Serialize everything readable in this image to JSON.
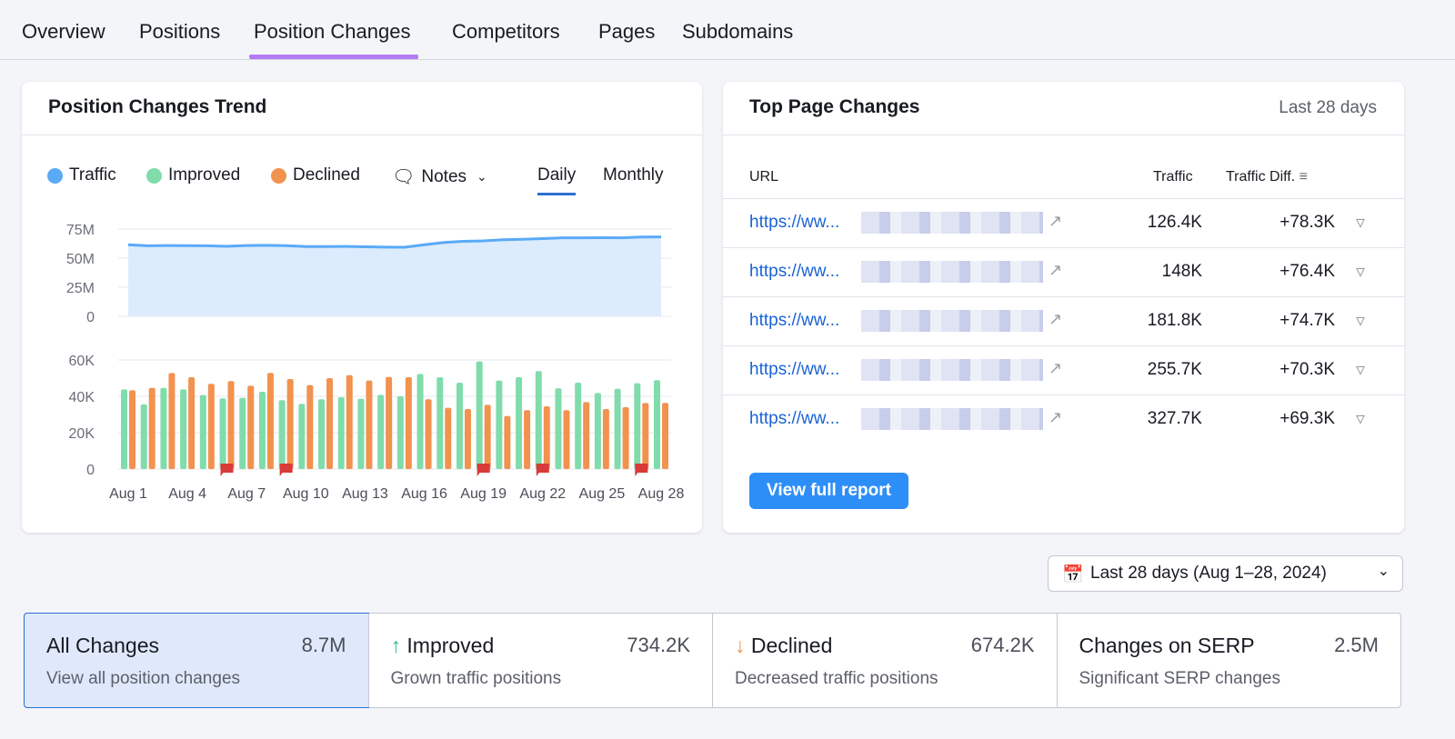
{
  "tabs": [
    "Overview",
    "Positions",
    "Position Changes",
    "Competitors",
    "Pages",
    "Subdomains"
  ],
  "trend": {
    "title": "Position Changes Trend",
    "legend": {
      "traffic": "Traffic",
      "improved": "Improved",
      "declined": "Declined",
      "notes": "Notes"
    },
    "daily": "Daily",
    "monthly": "Monthly",
    "colors": {
      "traffic": "#5aaaf7",
      "improved": "#80dcab",
      "declined": "#f2924f",
      "note": "#d93a3a"
    }
  },
  "chart_data": [
    {
      "type": "area",
      "series": [
        {
          "name": "Traffic",
          "values": [
            61.5,
            60.6,
            60.8,
            60.7,
            60.6,
            60.2,
            60.8,
            61,
            60.7,
            60,
            60,
            60.1,
            59.8,
            59.5,
            59.4,
            61.5,
            63.5,
            64.5,
            64.8,
            65.8,
            66.2,
            66.8,
            67.5,
            67.5,
            67.6,
            67.5,
            68.2,
            68.3
          ]
        }
      ],
      "x": [
        "Aug 1",
        "Aug 2",
        "Aug 3",
        "Aug 4",
        "Aug 5",
        "Aug 6",
        "Aug 7",
        "Aug 8",
        "Aug 9",
        "Aug 10",
        "Aug 11",
        "Aug 12",
        "Aug 13",
        "Aug 14",
        "Aug 15",
        "Aug 16",
        "Aug 17",
        "Aug 18",
        "Aug 19",
        "Aug 20",
        "Aug 21",
        "Aug 22",
        "Aug 23",
        "Aug 24",
        "Aug 25",
        "Aug 26",
        "Aug 27",
        "Aug 28"
      ],
      "yticks": [
        "0",
        "25M",
        "50M",
        "75M"
      ],
      "ylim": [
        0,
        75
      ],
      "unit": "M",
      "grid": true
    },
    {
      "type": "bar",
      "categories": [
        "Aug 1",
        "Aug 2",
        "Aug 3",
        "Aug 4",
        "Aug 5",
        "Aug 6",
        "Aug 7",
        "Aug 8",
        "Aug 9",
        "Aug 10",
        "Aug 11",
        "Aug 12",
        "Aug 13",
        "Aug 14",
        "Aug 15",
        "Aug 16",
        "Aug 17",
        "Aug 18",
        "Aug 19",
        "Aug 20",
        "Aug 21",
        "Aug 22",
        "Aug 23",
        "Aug 24",
        "Aug 25",
        "Aug 26",
        "Aug 27",
        "Aug 28"
      ],
      "series": [
        {
          "name": "Improved",
          "values": [
            43.8,
            35.6,
            44.6,
            43.8,
            40.7,
            38.9,
            39.2,
            42.5,
            37.9,
            35.9,
            38.4,
            39.5,
            38.7,
            40.8,
            40,
            52.3,
            50.5,
            47.5,
            59.2,
            48.7,
            50.5,
            53.9,
            44.4,
            47.5,
            41.8,
            44.1,
            47.2,
            48.9
          ]
        },
        {
          "name": "Declined",
          "values": [
            43.3,
            44.6,
            52.8,
            50.5,
            46.9,
            48.4,
            45.8,
            52.9,
            49.5,
            46.2,
            50,
            51.6,
            48.7,
            50.6,
            50.5,
            38.4,
            33.7,
            33,
            35.3,
            29.2,
            32.4,
            34.5,
            32.4,
            36.8,
            33,
            34,
            36.3,
            36.4
          ]
        }
      ],
      "notes_on": [
        "Aug 6",
        "Aug 9",
        "Aug 19",
        "Aug 22",
        "Aug 27"
      ],
      "yticks": [
        "0",
        "20K",
        "40K",
        "60K"
      ],
      "ylim": [
        0,
        60
      ],
      "unit": "K",
      "grid": true,
      "xticks": [
        "Aug 1",
        "Aug 4",
        "Aug 7",
        "Aug 10",
        "Aug 13",
        "Aug 16",
        "Aug 19",
        "Aug 22",
        "Aug 25",
        "Aug 28"
      ]
    }
  ],
  "top_pages": {
    "title": "Top Page Changes",
    "period": "Last 28 days",
    "columns": {
      "url": "URL",
      "traffic": "Traffic",
      "diff": "Traffic Diff."
    },
    "rows": [
      {
        "url": "https://ww...",
        "traffic": "126.4K",
        "diff": "+78.3K"
      },
      {
        "url": "https://ww...",
        "traffic": "148K",
        "diff": "+76.4K"
      },
      {
        "url": "https://ww...",
        "traffic": "181.8K",
        "diff": "+74.7K"
      },
      {
        "url": "https://ww...",
        "traffic": "255.7K",
        "diff": "+70.3K"
      },
      {
        "url": "https://ww...",
        "traffic": "327.7K",
        "diff": "+69.3K"
      }
    ],
    "button": "View full report"
  },
  "date_range": "Last 28 days (Aug 1–28, 2024)",
  "stats": [
    {
      "title": "All Changes",
      "value": "8.7M",
      "desc": "View all position changes"
    },
    {
      "title": "Improved",
      "value": "734.2K",
      "desc": "Grown traffic positions"
    },
    {
      "title": "Declined",
      "value": "674.2K",
      "desc": "Decreased traffic positions"
    },
    {
      "title": "Changes on SERP",
      "value": "2.5M",
      "desc": "Significant SERP changes"
    }
  ]
}
